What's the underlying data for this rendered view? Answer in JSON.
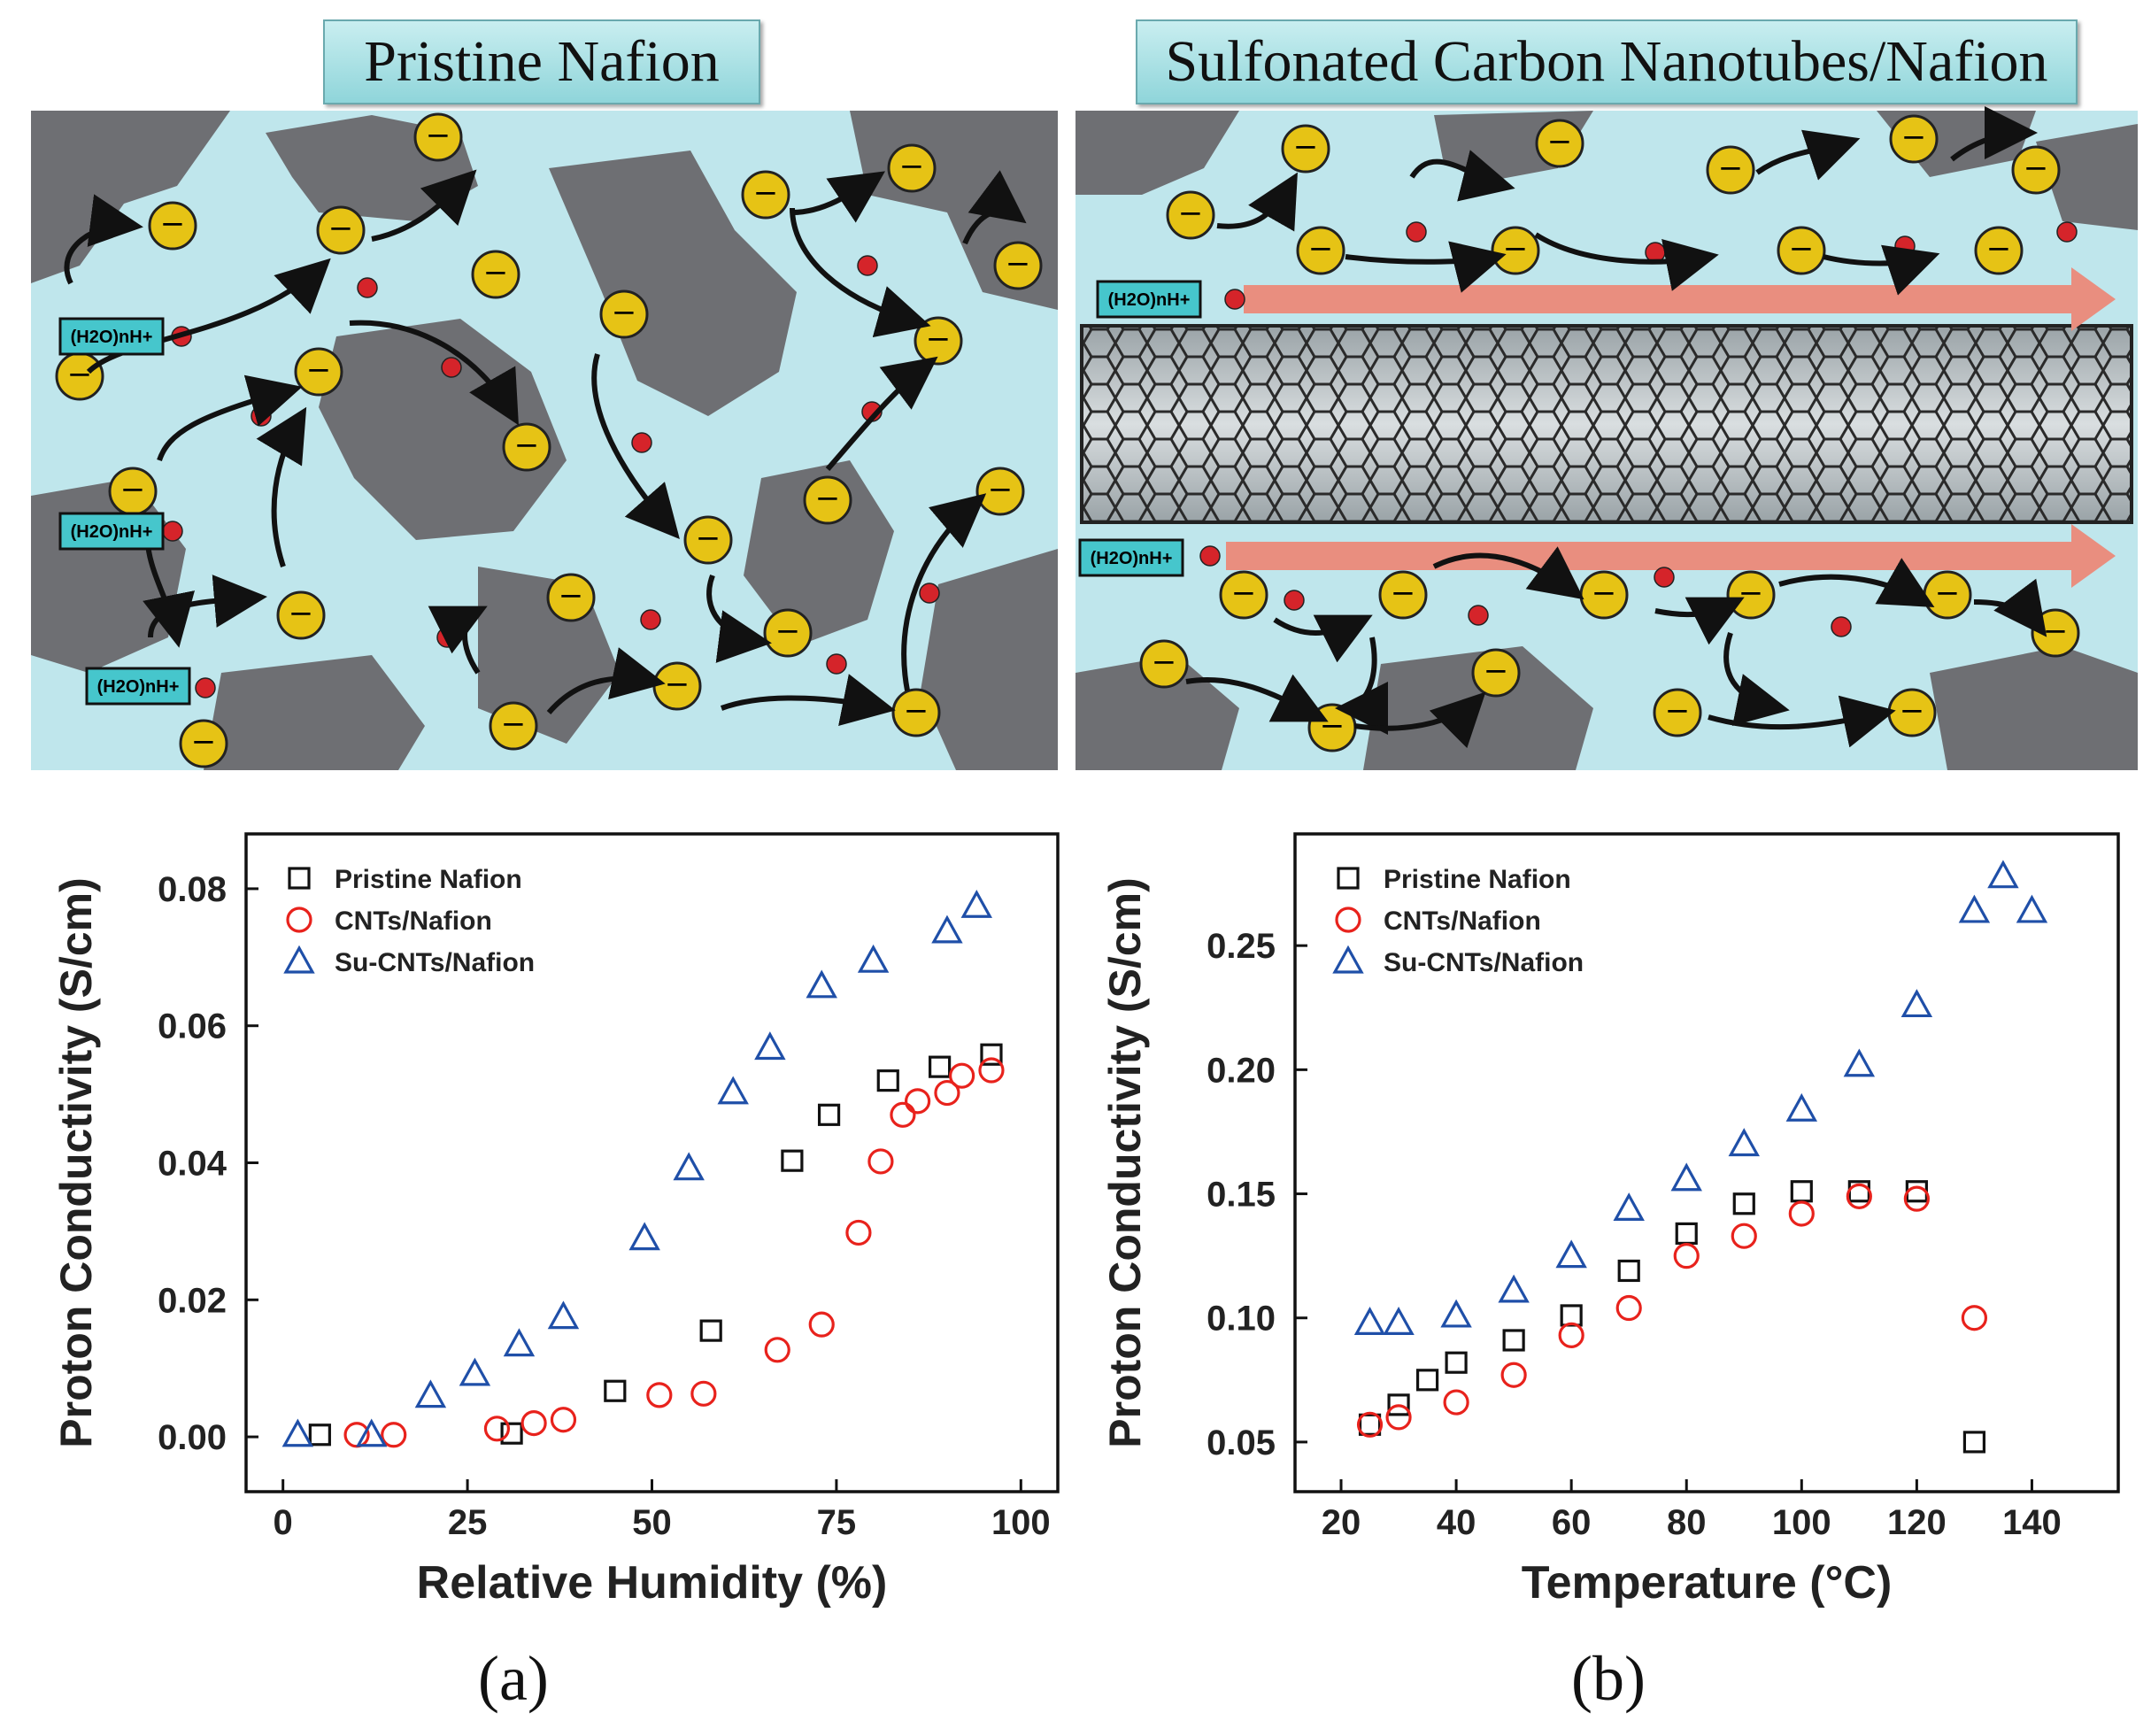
{
  "panels": {
    "left_title": "Pristine Nafion",
    "right_title": "Sulfonated Carbon Nanotubes/Nafion",
    "ion_sign": "−",
    "hydronium_label": "(H2O)nH+"
  },
  "colors": {
    "pristine": "#111111",
    "cnts": "#e8221c",
    "su_cnts": "#1f4fa8",
    "fluid": "#bfe6ec",
    "rock": "#6e6f73",
    "ion": "#e6c315",
    "arrow": "#e98e7f"
  },
  "labels": {
    "a": "(a)",
    "b": "(b)"
  },
  "chart_data": [
    {
      "type": "scatter",
      "xlabel": "Relative Humidity (%)",
      "ylabel": "Proton Conductivity (S/cm)",
      "xlim": [
        -5,
        105
      ],
      "ylim": [
        -0.008,
        0.088
      ],
      "xticks": [
        0,
        25,
        50,
        75,
        100
      ],
      "yticks": [
        0.0,
        0.02,
        0.04,
        0.06,
        0.08
      ],
      "ytick_labels": [
        "0.00",
        "0.02",
        "0.04",
        "0.06",
        "0.08"
      ],
      "legend_position": "top-left",
      "series": [
        {
          "name": "Pristine Nafion",
          "marker": "square",
          "x": [
            5,
            31,
            45,
            58,
            69,
            74,
            82,
            89,
            96
          ],
          "y": [
            0.0003,
            0.0005,
            0.0067,
            0.0155,
            0.0403,
            0.047,
            0.052,
            0.054,
            0.0558
          ]
        },
        {
          "name": "CNTs/Nafion",
          "marker": "circle",
          "x": [
            10,
            15,
            29,
            34,
            38,
            51,
            57,
            67,
            73,
            78,
            81,
            84,
            86,
            90,
            92,
            96
          ],
          "y": [
            0.0003,
            0.0003,
            0.0012,
            0.002,
            0.0025,
            0.0061,
            0.0063,
            0.0127,
            0.0164,
            0.0298,
            0.0402,
            0.047,
            0.049,
            0.0502,
            0.0527,
            0.0535
          ]
        },
        {
          "name": "Su-CNTs/Nafion",
          "marker": "triangle",
          "x": [
            2,
            12,
            20,
            26,
            32,
            38,
            49,
            55,
            61,
            66,
            73,
            80,
            90,
            94
          ],
          "y": [
            0.0003,
            0.0003,
            0.006,
            0.0092,
            0.0135,
            0.0175,
            0.029,
            0.0392,
            0.0503,
            0.0568,
            0.0658,
            0.0695,
            0.0738,
            0.0775
          ]
        }
      ]
    },
    {
      "type": "scatter",
      "xlabel": "Temperature (°C)",
      "ylabel": "Proton Conductivity (S/cm)",
      "xlim": [
        12,
        155
      ],
      "ylim": [
        0.03,
        0.295
      ],
      "xticks": [
        20,
        40,
        60,
        80,
        100,
        120,
        140
      ],
      "yticks": [
        0.05,
        0.1,
        0.15,
        0.2,
        0.25
      ],
      "ytick_labels": [
        "0.05",
        "0.10",
        "0.15",
        "0.20",
        "0.25"
      ],
      "legend_position": "top-left",
      "series": [
        {
          "name": "Pristine Nafion",
          "marker": "square",
          "x": [
            25,
            30,
            35,
            40,
            50,
            60,
            70,
            80,
            90,
            100,
            110,
            120,
            130
          ],
          "y": [
            0.057,
            0.065,
            0.075,
            0.082,
            0.091,
            0.101,
            0.119,
            0.134,
            0.146,
            0.151,
            0.151,
            0.151,
            0.05
          ]
        },
        {
          "name": "CNTs/Nafion",
          "marker": "circle",
          "x": [
            25,
            30,
            40,
            50,
            60,
            70,
            80,
            90,
            100,
            110,
            120,
            130
          ],
          "y": [
            0.057,
            0.06,
            0.066,
            0.077,
            0.093,
            0.104,
            0.125,
            0.133,
            0.142,
            0.149,
            0.148,
            0.1
          ]
        },
        {
          "name": "Su-CNTs/Nafion",
          "marker": "triangle",
          "x": [
            25,
            30,
            40,
            50,
            60,
            70,
            80,
            90,
            100,
            110,
            120,
            130,
            135,
            140
          ],
          "y": [
            0.098,
            0.098,
            0.101,
            0.111,
            0.125,
            0.144,
            0.156,
            0.17,
            0.184,
            0.202,
            0.226,
            0.264,
            0.278,
            0.264
          ]
        }
      ]
    }
  ]
}
